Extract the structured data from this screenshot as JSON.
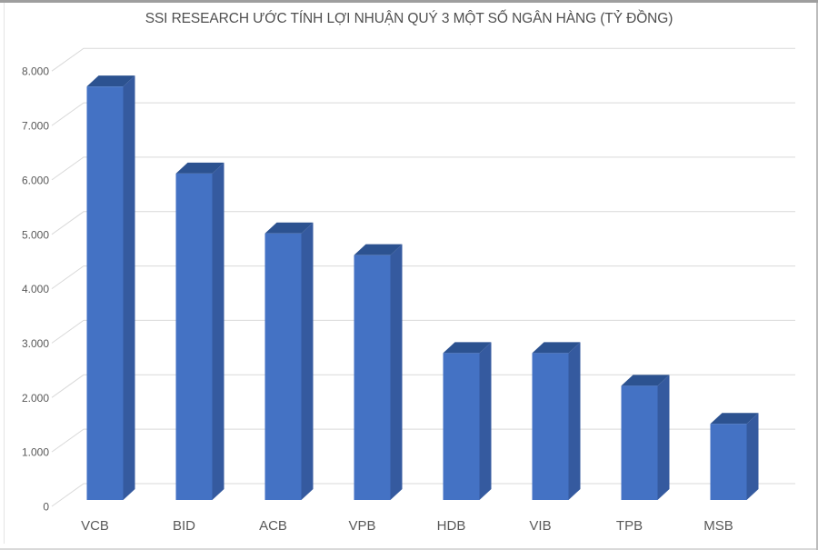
{
  "chart_data": {
    "type": "bar",
    "style": "3d-column",
    "title": "SSI RESEARCH ƯỚC TÍNH LỢI NHUẬN QUÝ 3 MỘT SỐ NGÂN HÀNG (TỶ ĐỒNG)",
    "categories": [
      "VCB",
      "BID",
      "ACB",
      "VPB",
      "HDB",
      "VIB",
      "TPB",
      "MSB"
    ],
    "values": [
      7600,
      6000,
      4900,
      4500,
      2700,
      2700,
      2100,
      1400
    ],
    "unit": "tỷ đồng",
    "xlabel": "",
    "ylabel": "",
    "ylim": [
      0,
      8000
    ],
    "ytick_step": 1000,
    "ytick_labels": [
      "0",
      "1.000",
      "2.000",
      "3.000",
      "4.000",
      "5.000",
      "6.000",
      "7.000",
      "8.000"
    ],
    "grid": true,
    "legend": "none",
    "colors": {
      "bar_front": "#4472C4",
      "bar_top": "#2C5290",
      "bar_side": "#355A9F",
      "gridline": "#D9D9D9",
      "axis_label": "#595959",
      "title": "#4f4f4f"
    }
  }
}
